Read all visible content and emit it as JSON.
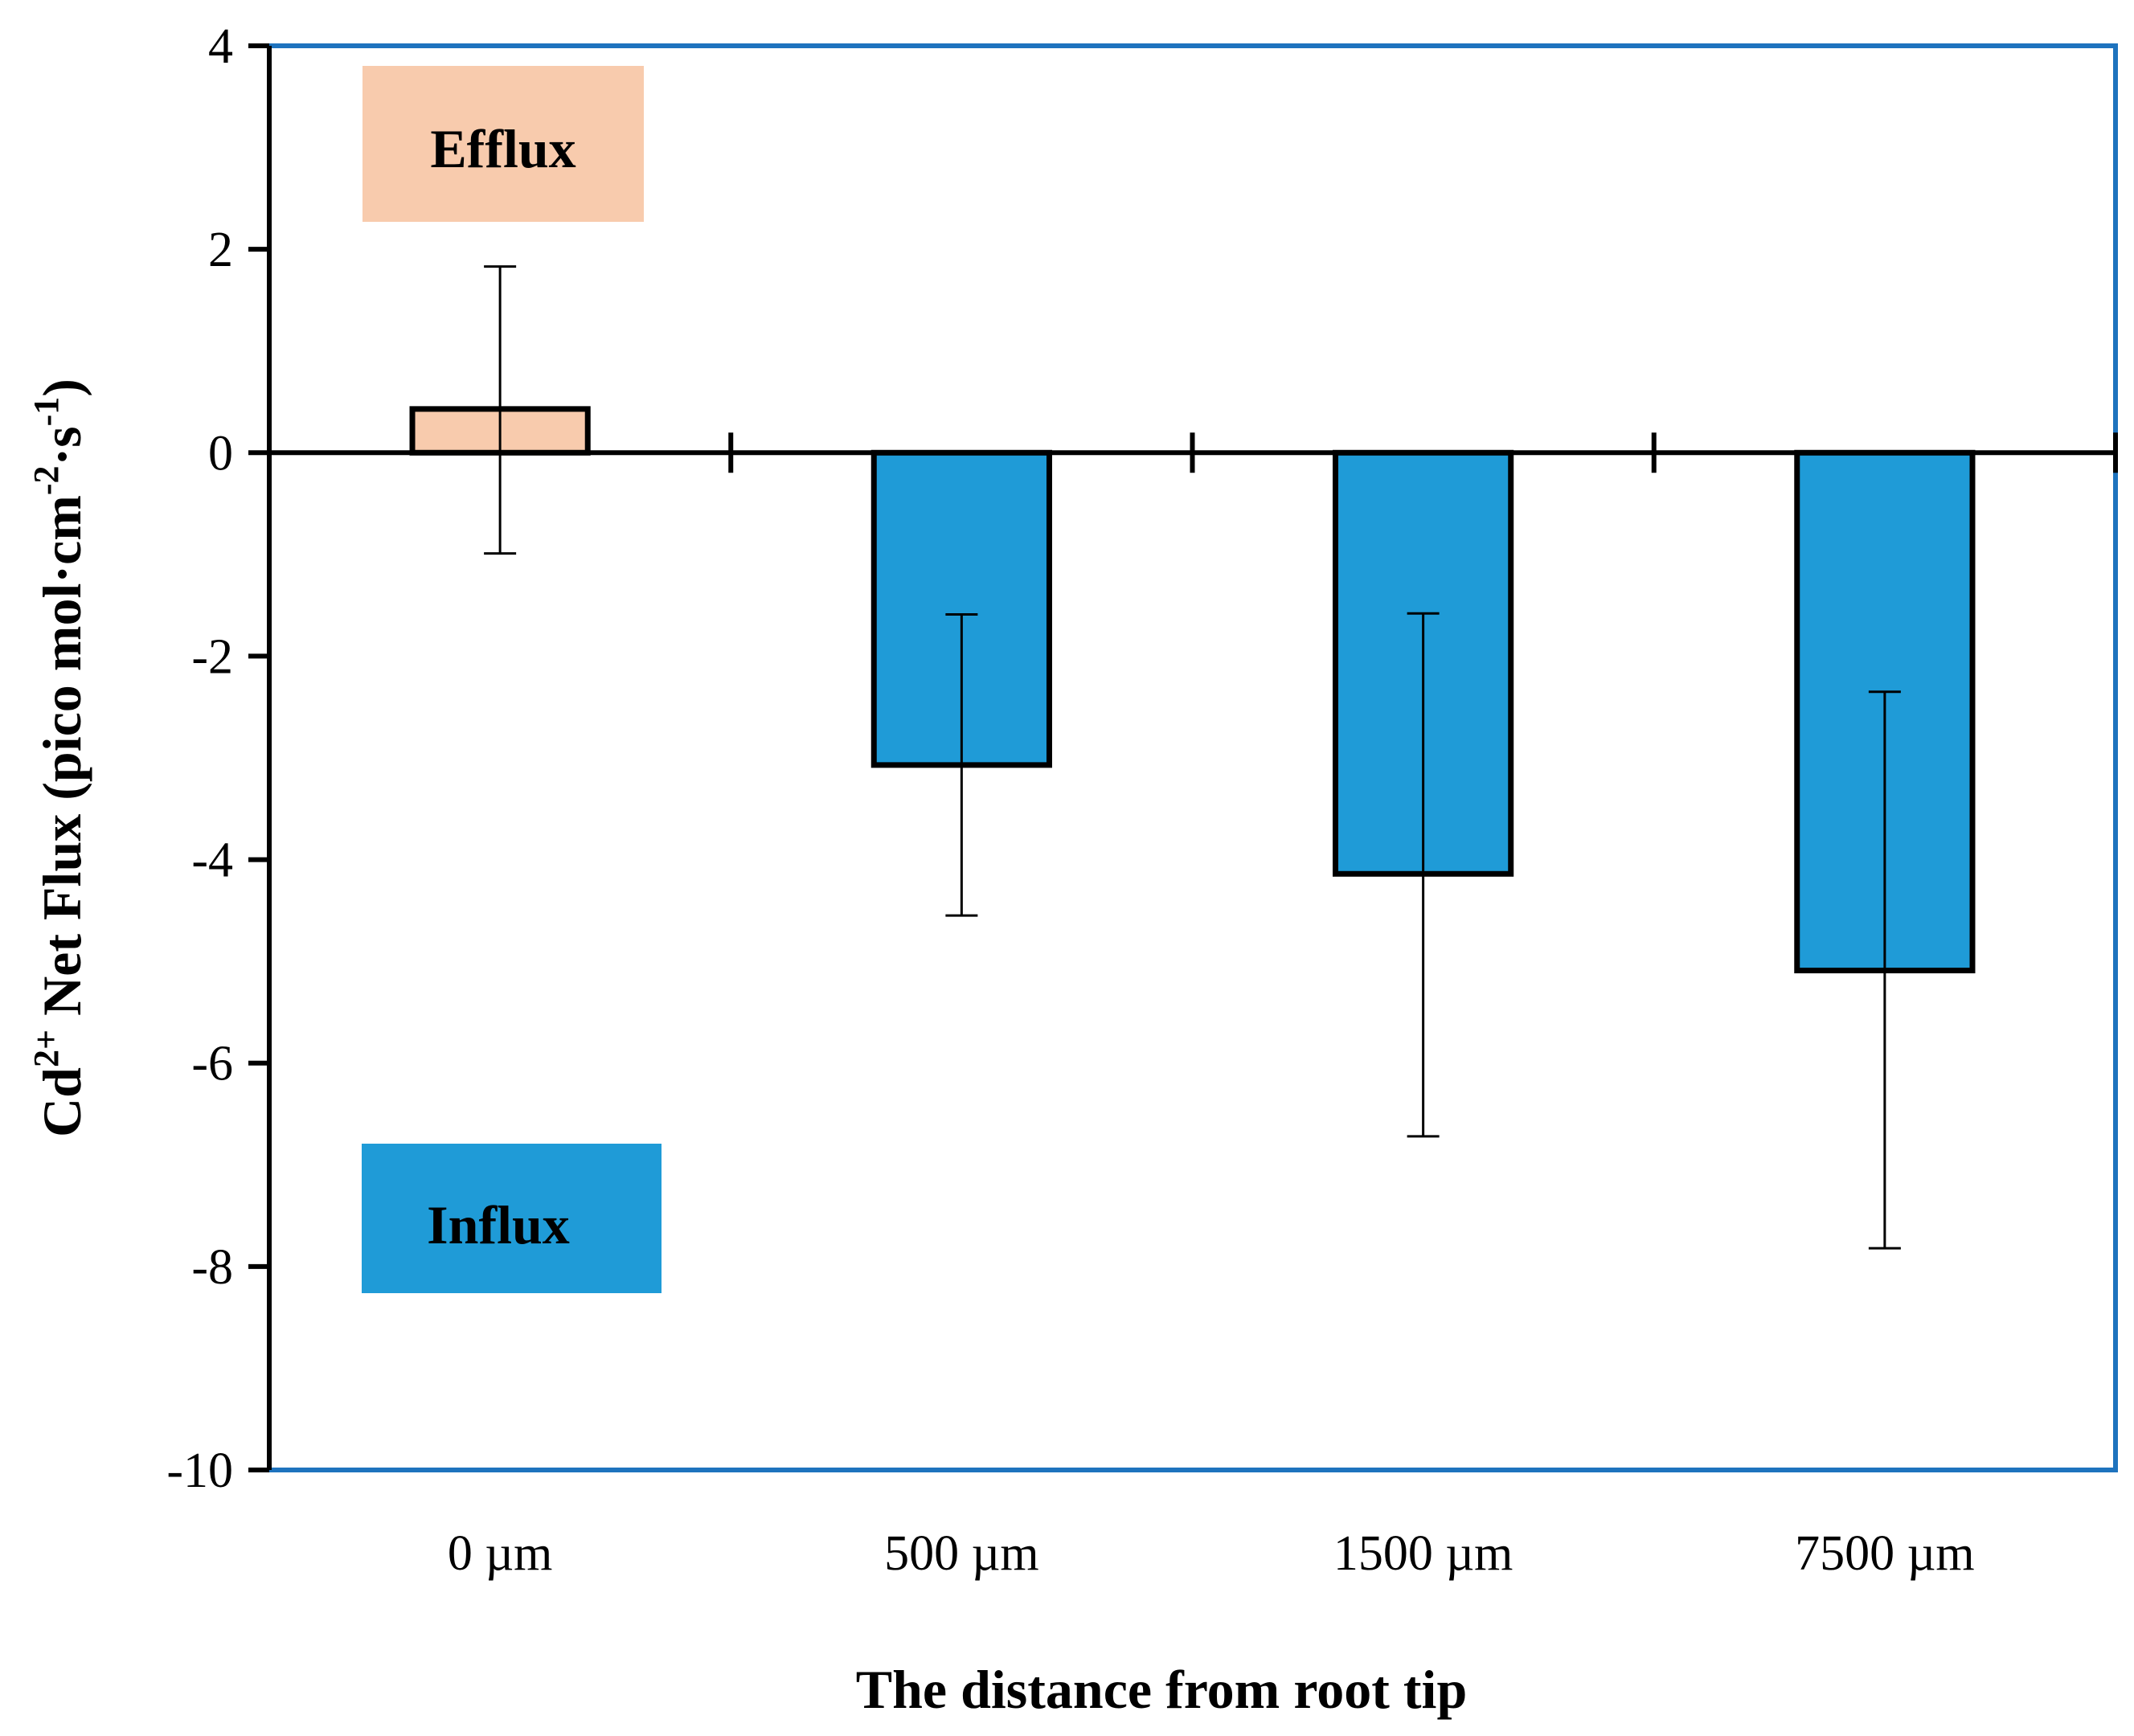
{
  "chart_data": {
    "type": "bar",
    "categories": [
      "0 µm",
      "500 µm",
      "1500 µm",
      "7500 µm"
    ],
    "values": [
      0.43,
      -3.07,
      -4.14,
      -5.09
    ],
    "error_upper": [
      1.83,
      -1.59,
      -1.58,
      -2.35
    ],
    "error_lower": [
      -0.99,
      -4.55,
      -6.72,
      -7.82
    ],
    "bar_colors": [
      "#F8CBAD",
      "#1F9BD7",
      "#1F9BD7",
      "#1F9BD7"
    ],
    "ylim": [
      -10,
      4
    ],
    "yticks": [
      "4",
      "2",
      "0",
      "-2",
      "-4",
      "-6",
      "-8",
      "-10"
    ],
    "ylabel": {
      "main": "Cd",
      "sup1": "2+",
      "mid": " Net Flux (pico mol·cm",
      "sup2": "-2",
      "mid2": "·s",
      "sup3": "-1",
      "end": ")"
    },
    "xlabel": "The distance from root tip",
    "annotations": [
      {
        "text": "Efflux",
        "color": "#F8CBAD"
      },
      {
        "text": "Influx",
        "color": "#1F9BD7"
      }
    ],
    "frame_color": "#1E73BE",
    "grid": false
  }
}
